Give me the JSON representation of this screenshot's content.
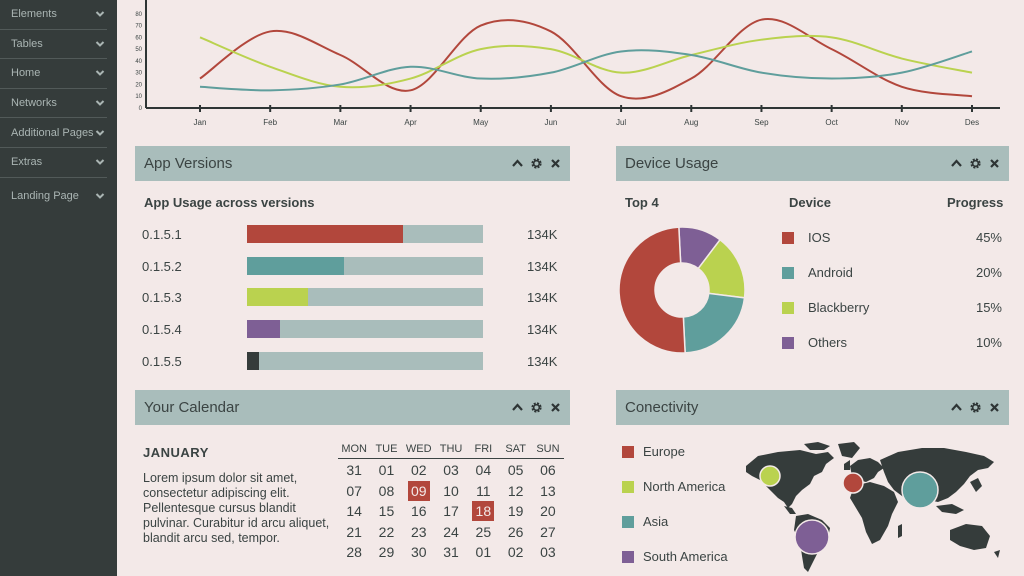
{
  "sidebar": {
    "items": [
      {
        "label": "Elements"
      },
      {
        "label": "Tables"
      },
      {
        "label": "Home"
      },
      {
        "label": "Networks"
      },
      {
        "label": "Additional Pages"
      },
      {
        "label": "Extras"
      },
      {
        "label": "Landing Page"
      }
    ]
  },
  "line_chart": {
    "months": [
      "Jan",
      "Feb",
      "Mar",
      "Apr",
      "May",
      "Jun",
      "Jul",
      "Aug",
      "Sep",
      "Oct",
      "Nov",
      "Des"
    ],
    "y_ticks": [
      "0",
      "10",
      "20",
      "30",
      "40",
      "50",
      "60",
      "70",
      "80"
    ]
  },
  "chart_data": {
    "type": "line",
    "x": [
      "Jan",
      "Feb",
      "Mar",
      "Apr",
      "May",
      "Jun",
      "Jul",
      "Aug",
      "Sep",
      "Oct",
      "Nov",
      "Des"
    ],
    "ylim": [
      0,
      90
    ],
    "series": [
      {
        "color": "#b2473c",
        "values": [
          25,
          65,
          45,
          15,
          70,
          65,
          10,
          25,
          75,
          50,
          18,
          10
        ]
      },
      {
        "color": "#bad24f",
        "values": [
          60,
          35,
          18,
          25,
          50,
          50,
          30,
          45,
          58,
          60,
          42,
          30
        ]
      },
      {
        "color": "#5f9e9c",
        "values": [
          18,
          15,
          20,
          35,
          25,
          30,
          48,
          45,
          30,
          25,
          30,
          48
        ]
      }
    ]
  },
  "app_versions": {
    "title": "App Versions",
    "subtitle": "App Usage across versions",
    "rows": [
      {
        "version": "0.1.5.1",
        "value": "134K",
        "fill": 0.66,
        "color": "#b2473c"
      },
      {
        "version": "0.1.5.2",
        "value": "134K",
        "fill": 0.41,
        "color": "#5f9e9c"
      },
      {
        "version": "0.1.5.3",
        "value": "134K",
        "fill": 0.26,
        "color": "#bad24f"
      },
      {
        "version": "0.1.5.4",
        "value": "134K",
        "fill": 0.14,
        "color": "#7e5f95"
      },
      {
        "version": "0.1.5.5",
        "value": "134K",
        "fill": 0.05,
        "color": "#353c3b"
      }
    ]
  },
  "device_usage": {
    "title": "Device Usage",
    "top_label": "Top 4",
    "device_header": "Device",
    "progress_header": "Progress",
    "devices": [
      {
        "name": "IOS",
        "pct": "45%",
        "value": 45,
        "color": "#b2473c"
      },
      {
        "name": "Android",
        "pct": "20%",
        "value": 20,
        "color": "#5f9e9c"
      },
      {
        "name": "Blackberry",
        "pct": "15%",
        "value": 15,
        "color": "#bad24f"
      },
      {
        "name": "Others",
        "pct": "10%",
        "value": 10,
        "color": "#7e5f95"
      }
    ]
  },
  "calendar": {
    "title": "Your Calendar",
    "month": "JANUARY",
    "note": "Lorem ipsum dolor sit amet, consectetur adipiscing elit. Pellentesque cursus blandit pulvinar. Curabitur id arcu aliquet, blandit arcu sed, tempor.",
    "days": [
      "MON",
      "TUE",
      "WED",
      "THU",
      "FRI",
      "SAT",
      "SUN"
    ],
    "weeks": [
      [
        "31",
        "01",
        "02",
        "03",
        "04",
        "05",
        "06"
      ],
      [
        "07",
        "08",
        "09",
        "10",
        "11",
        "12",
        "13"
      ],
      [
        "14",
        "15",
        "16",
        "17",
        "18",
        "19",
        "20"
      ],
      [
        "21",
        "22",
        "23",
        "24",
        "25",
        "26",
        "27"
      ],
      [
        "28",
        "29",
        "30",
        "31",
        "01",
        "02",
        "03"
      ]
    ],
    "highlighted": [
      "09",
      "18"
    ]
  },
  "connectivity": {
    "title": "Conectivity",
    "regions": [
      {
        "name": "Europe",
        "color": "#b2473c"
      },
      {
        "name": "North America",
        "color": "#bad24f"
      },
      {
        "name": "Asia",
        "color": "#5f9e9c"
      },
      {
        "name": "South America",
        "color": "#7e5f95"
      }
    ]
  },
  "colors": {
    "background": "#f3e9e8",
    "sidebar": "#353c3b",
    "panel_header": "#a9bdbb",
    "red": "#b2473c",
    "teal": "#5f9e9c",
    "lime": "#bad24f",
    "purple": "#7e5f95"
  }
}
